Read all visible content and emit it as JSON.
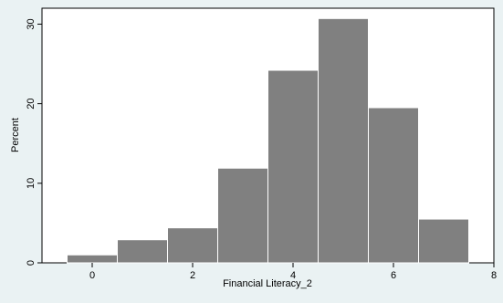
{
  "chart_data": {
    "type": "bar",
    "subtype": "histogram",
    "xlabel": "Financial Literacy_2",
    "ylabel": "Percent",
    "xlim": [
      -1,
      8
    ],
    "ylim": [
      0,
      32
    ],
    "xticks": [
      0,
      2,
      4,
      6,
      8
    ],
    "yticks": [
      0,
      10,
      20,
      30
    ],
    "bin_width": 1,
    "bins": [
      {
        "x": 0,
        "value": 1.0
      },
      {
        "x": 1,
        "value": 2.9
      },
      {
        "x": 2,
        "value": 4.4
      },
      {
        "x": 3,
        "value": 11.9
      },
      {
        "x": 4,
        "value": 24.2
      },
      {
        "x": 5,
        "value": 30.7
      },
      {
        "x": 6,
        "value": 19.5
      },
      {
        "x": 7,
        "value": 5.5
      }
    ],
    "grid": false,
    "colors": {
      "bar_fill": "#808080",
      "bar_edge": "#ffffff",
      "plot_background": "#ffffff",
      "outer_background": "#eaf2f3"
    }
  }
}
